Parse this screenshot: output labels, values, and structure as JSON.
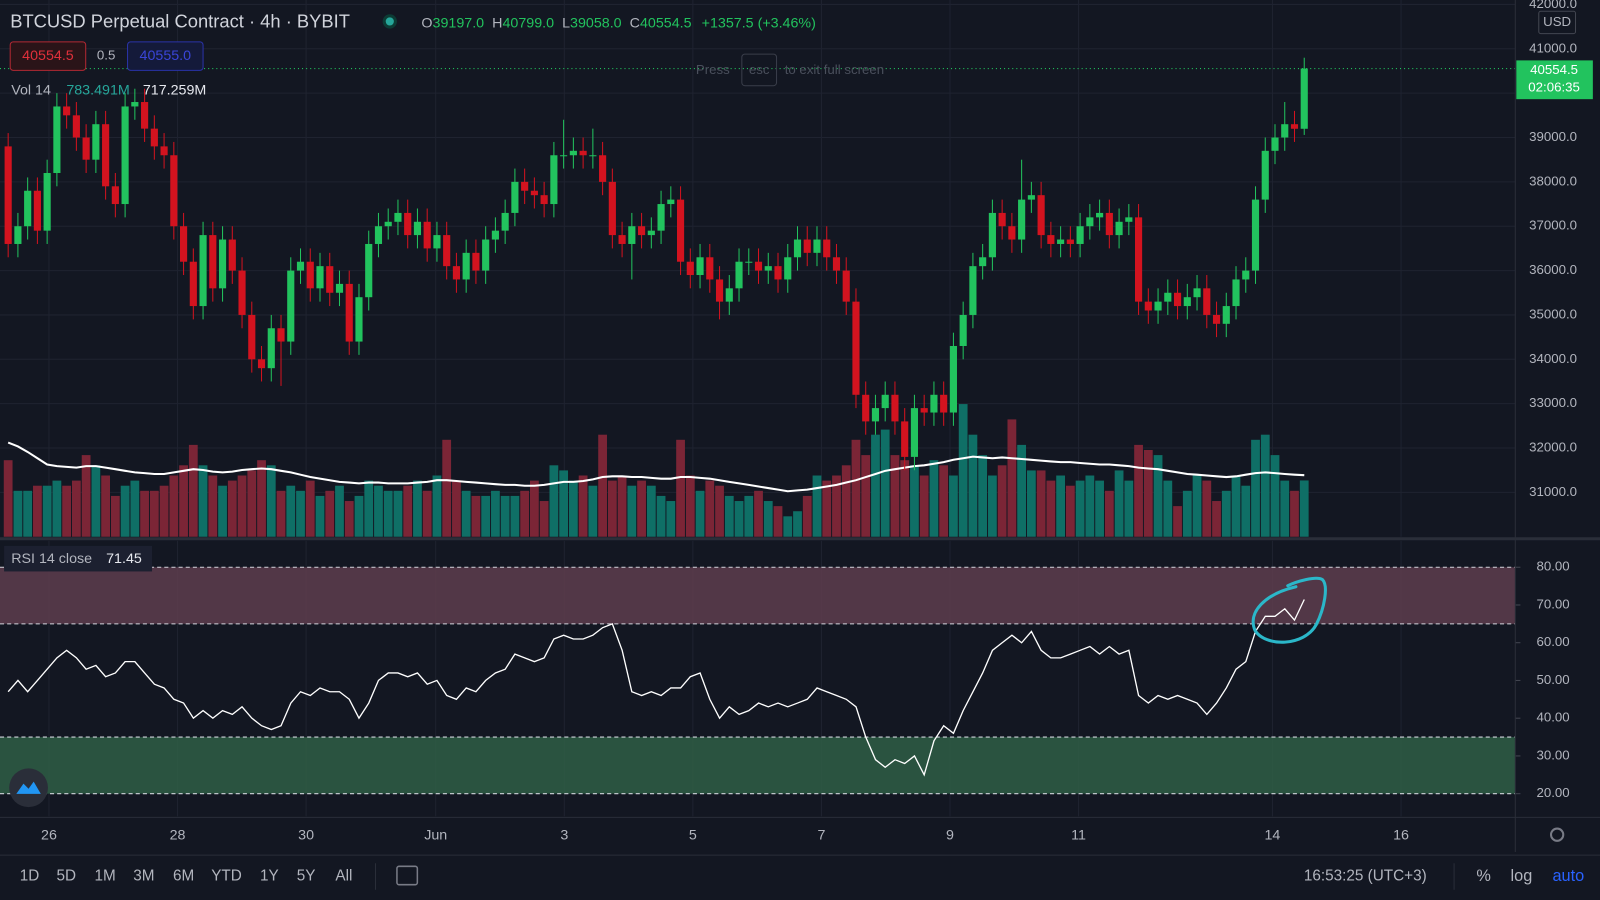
{
  "chart_data": {
    "type": "candlestick",
    "title": "BTCUSD Perpetual Contract · 4h · BYBIT",
    "ohlc_legend": [
      {
        "key": "O",
        "value": "39197.0"
      },
      {
        "key": "H",
        "value": "40799.0"
      },
      {
        "key": "L",
        "value": "39058.0"
      },
      {
        "key": "C",
        "value": "40554.5"
      }
    ],
    "change": "+1357.5 (+3.46%)",
    "sell_price": "40554.5",
    "spread": "0.5",
    "buy_price": "40555.0",
    "overlay_hint": [
      "Press",
      "esc",
      "to exit full screen"
    ],
    "volume_legend": {
      "name": "Vol 14",
      "ma": "783.491M",
      "last": "717.259M"
    },
    "price_tag": {
      "price": "40554.5",
      "countdown": "02:06:35"
    },
    "currency": "USD",
    "up_color": "#22c35e",
    "down_color": "#d3131f",
    "volume_up_color": "#0f6f66",
    "volume_down_color": "#7b2536",
    "grid": true,
    "ylim": [
      30000,
      42100
    ],
    "yticks": [
      {
        "value": 31000,
        "label": "31000.0"
      },
      {
        "value": 32000,
        "label": "32000.0"
      },
      {
        "value": 33000,
        "label": "33000.0"
      },
      {
        "value": 34000,
        "label": "34000.0"
      },
      {
        "value": 35000,
        "label": "35000.0"
      },
      {
        "value": 36000,
        "label": "36000.0"
      },
      {
        "value": 37000,
        "label": "37000.0"
      },
      {
        "value": 38000,
        "label": "38000.0"
      },
      {
        "value": 39000,
        "label": "39000.0"
      },
      {
        "value": 40000,
        "label": "40000.0"
      },
      {
        "value": 41000,
        "label": "41000.0"
      },
      {
        "value": 42000,
        "label": "42000.0"
      }
    ],
    "xtick_labels": [
      "26",
      "28",
      "30",
      "Jun",
      "3",
      "5",
      "7",
      "9",
      "11",
      "14",
      "16"
    ],
    "open": [
      38800,
      36600,
      37000,
      37800,
      36900,
      38200,
      39700,
      39500,
      39000,
      38500,
      39300,
      37900,
      37500,
      39700,
      39800,
      39200,
      38800,
      38600,
      37000,
      36200,
      35200,
      36800,
      35600,
      36700,
      36000,
      35000,
      34000,
      33800,
      34700,
      34400,
      36000,
      36200,
      35600,
      36100,
      35500,
      35700,
      34400,
      35400,
      36600,
      37000,
      37100,
      37300,
      36800,
      37100,
      36500,
      36800,
      36100,
      35800,
      36400,
      36000,
      36700,
      36900,
      37300,
      38000,
      37800,
      37700,
      37500,
      38600,
      38600,
      38700,
      38600,
      38600,
      38000,
      36800,
      36600,
      37000,
      36800,
      36900,
      37500,
      37600,
      36200,
      35900,
      36300,
      35800,
      35300,
      35600,
      36200,
      36200,
      36000,
      36100,
      35800,
      36300,
      36700,
      36400,
      36700,
      36300,
      36000,
      35300,
      33200,
      32600,
      32900,
      33200,
      32600,
      31800,
      32900,
      32800,
      33200,
      32800,
      34300,
      35000,
      36100,
      36300,
      37300,
      37000,
      36700,
      37600,
      37700,
      36800,
      36600,
      36700,
      36600,
      37000,
      37200,
      37300,
      36800,
      37100,
      37200,
      35300,
      35100,
      35300,
      35500,
      35200,
      35400,
      35600,
      35000,
      34800,
      35200,
      35800,
      36000,
      37600,
      38700,
      39000,
      39300,
      39197
    ],
    "high": [
      39100,
      37300,
      38100,
      38100,
      38500,
      40000,
      40000,
      39800,
      39300,
      39600,
      39600,
      38200,
      40000,
      40100,
      40100,
      39500,
      39100,
      38900,
      37300,
      36500,
      37100,
      37100,
      37000,
      37000,
      36300,
      35300,
      34300,
      35000,
      35000,
      36300,
      36500,
      36500,
      36400,
      36400,
      36000,
      36000,
      35700,
      36900,
      37300,
      37400,
      37600,
      37600,
      37400,
      37400,
      37100,
      37100,
      36400,
      36700,
      36700,
      37000,
      37200,
      37600,
      38300,
      38300,
      38100,
      38000,
      38900,
      39400,
      39000,
      39000,
      39200,
      38900,
      38300,
      37100,
      37300,
      37300,
      37200,
      37800,
      37900,
      37900,
      36500,
      36600,
      36600,
      36100,
      35900,
      36500,
      36500,
      36500,
      36400,
      36400,
      36600,
      37000,
      37000,
      37000,
      37000,
      36600,
      36300,
      35600,
      33500,
      33200,
      33500,
      33500,
      32900,
      33200,
      33200,
      33500,
      33500,
      34600,
      35300,
      36400,
      36600,
      37600,
      37600,
      37300,
      38500,
      38000,
      38000,
      37100,
      37000,
      37000,
      37300,
      37500,
      37600,
      37600,
      37400,
      37500,
      37500,
      35600,
      35600,
      35800,
      35800,
      35700,
      35900,
      35900,
      35300,
      35500,
      36100,
      36300,
      37900,
      39000,
      39300,
      39800,
      39600,
      40799
    ],
    "low": [
      36300,
      36300,
      36700,
      36600,
      36600,
      37900,
      39200,
      38700,
      38200,
      38200,
      37600,
      37200,
      37200,
      39400,
      38900,
      38500,
      38300,
      36700,
      35900,
      34900,
      34900,
      35300,
      35300,
      35700,
      34700,
      33700,
      33500,
      33500,
      33400,
      34100,
      35700,
      35300,
      35300,
      35200,
      35200,
      34100,
      34100,
      35100,
      36300,
      36700,
      36800,
      36500,
      36500,
      36200,
      36200,
      35800,
      35500,
      35500,
      35700,
      35700,
      36400,
      36600,
      37000,
      37500,
      37400,
      37200,
      37200,
      38300,
      38300,
      38300,
      38300,
      37700,
      36500,
      36300,
      35800,
      36500,
      36500,
      36600,
      37200,
      35900,
      35600,
      35600,
      35500,
      34900,
      35000,
      35300,
      35900,
      35700,
      35700,
      35500,
      35500,
      36000,
      36100,
      36100,
      36000,
      35700,
      35000,
      32900,
      32300,
      32300,
      32600,
      32300,
      31500,
      31500,
      32500,
      32500,
      32500,
      32500,
      34000,
      34700,
      35800,
      36000,
      36700,
      36400,
      36400,
      37300,
      36500,
      36300,
      36300,
      36300,
      36300,
      36700,
      36900,
      36500,
      36500,
      36800,
      35000,
      34800,
      34800,
      35000,
      34900,
      34900,
      35100,
      34700,
      34500,
      34500,
      34900,
      35500,
      35700,
      37300,
      38400,
      38700,
      38900,
      39058
    ],
    "close": [
      36600,
      37000,
      37800,
      36900,
      38200,
      39700,
      39500,
      39000,
      38500,
      39300,
      37900,
      37500,
      39700,
      39800,
      39200,
      38800,
      38600,
      37000,
      36200,
      35200,
      36800,
      35600,
      36700,
      36000,
      35000,
      34000,
      33800,
      34700,
      34400,
      36000,
      36200,
      35600,
      36100,
      35500,
      35700,
      34400,
      35400,
      36600,
      37000,
      37100,
      37300,
      36800,
      37100,
      36500,
      36800,
      36100,
      35800,
      36400,
      36000,
      36700,
      36900,
      37300,
      38000,
      37800,
      37700,
      37500,
      38600,
      38600,
      38700,
      38600,
      38600,
      38000,
      36800,
      36600,
      37000,
      36800,
      36900,
      37500,
      37600,
      36200,
      35900,
      36300,
      35800,
      35300,
      35600,
      36200,
      36200,
      36000,
      36100,
      35800,
      36300,
      36700,
      36400,
      36700,
      36300,
      36000,
      35300,
      33200,
      32600,
      32900,
      33200,
      32600,
      31800,
      32900,
      32800,
      33200,
      32800,
      34300,
      35000,
      36100,
      36300,
      37300,
      37000,
      36700,
      37600,
      37700,
      36800,
      36600,
      36700,
      36600,
      37000,
      37200,
      37300,
      36800,
      37100,
      37200,
      35300,
      35100,
      35300,
      35500,
      35200,
      35400,
      35600,
      35000,
      34800,
      35200,
      35800,
      36000,
      37600,
      38700,
      39000,
      39300,
      39197,
      40554.5
    ],
    "volume": [
      975,
      585,
      585,
      650,
      650,
      715,
      650,
      715,
      1040,
      910,
      780,
      520,
      650,
      715,
      585,
      585,
      650,
      780,
      910,
      1170,
      910,
      780,
      650,
      715,
      780,
      845,
      975,
      910,
      585,
      650,
      585,
      715,
      520,
      585,
      650,
      455,
      520,
      715,
      650,
      585,
      585,
      650,
      715,
      585,
      780,
      1235,
      715,
      585,
      520,
      520,
      585,
      520,
      520,
      585,
      715,
      455,
      910,
      845,
      715,
      780,
      650,
      1300,
      715,
      780,
      650,
      715,
      650,
      520,
      455,
      1235,
      780,
      585,
      715,
      650,
      520,
      455,
      520,
      585,
      455,
      390,
      260,
      325,
      520,
      780,
      715,
      780,
      910,
      1235,
      1040,
      1300,
      1365,
      1040,
      975,
      910,
      780,
      975,
      910,
      780,
      1690,
      1300,
      1040,
      780,
      910,
      1495,
      1170,
      845,
      845,
      715,
      780,
      650,
      715,
      780,
      715,
      585,
      845,
      715,
      1170,
      1105,
      1040,
      715,
      390,
      585,
      780,
      715,
      455,
      585,
      780,
      650,
      1235,
      1300,
      1040,
      715,
      585,
      717.259
    ],
    "volume_ma": [
      1200,
      1150,
      1080,
      1000,
      920,
      900,
      890,
      880,
      900,
      900,
      880,
      860,
      840,
      820,
      810,
      800,
      800,
      820,
      840,
      860,
      850,
      830,
      820,
      830,
      850,
      860,
      870,
      860,
      840,
      820,
      790,
      760,
      740,
      720,
      700,
      690,
      680,
      690,
      690,
      680,
      680,
      680,
      690,
      700,
      720,
      720,
      710,
      700,
      690,
      680,
      670,
      660,
      660,
      650,
      650,
      660,
      680,
      700,
      700,
      710,
      730,
      760,
      770,
      770,
      760,
      760,
      750,
      740,
      740,
      760,
      760,
      750,
      740,
      720,
      700,
      680,
      660,
      640,
      620,
      600,
      580,
      590,
      600,
      620,
      640,
      660,
      690,
      720,
      760,
      800,
      840,
      860,
      880,
      900,
      910,
      930,
      950,
      980,
      1000,
      1020,
      1010,
      1000,
      1010,
      1000,
      990,
      980,
      970,
      960,
      950,
      950,
      940,
      930,
      920,
      920,
      910,
      900,
      880,
      870,
      860,
      840,
      820,
      800,
      790,
      780,
      770,
      760,
      770,
      790,
      810,
      820,
      810,
      800,
      790,
      783.491
    ],
    "rsi": {
      "name": "RSI 14 close",
      "value_label": "71.45",
      "line_color": "#ffffff",
      "ylim": [
        14,
        87
      ],
      "yticks": [
        {
          "value": 20,
          "label": "20.00"
        },
        {
          "value": 30,
          "label": "30.00"
        },
        {
          "value": 40,
          "label": "40.00"
        },
        {
          "value": 50,
          "label": "50.00"
        },
        {
          "value": 60,
          "label": "60.00"
        },
        {
          "value": 70,
          "label": "70.00"
        },
        {
          "value": 80,
          "label": "80.00"
        }
      ],
      "overbought": [
        65,
        80
      ],
      "oversold": [
        20,
        35
      ],
      "overbought_color": "#5e3d4d",
      "oversold_color": "#2f5e45",
      "values": [
        47,
        50,
        47,
        50,
        53,
        56,
        58,
        56,
        53,
        54,
        51,
        52,
        55,
        55,
        52,
        49,
        48,
        45,
        44,
        40,
        42,
        40,
        42,
        41,
        43,
        40,
        38,
        37,
        38,
        44,
        47,
        46,
        48,
        47,
        47,
        45,
        40,
        44,
        50,
        52,
        52,
        51,
        52,
        49,
        50,
        46,
        45,
        48,
        47,
        50,
        52,
        53,
        57,
        56,
        55,
        56,
        61,
        62,
        61,
        61,
        62,
        64,
        65,
        58,
        47,
        46,
        47,
        46,
        48,
        48,
        51,
        52,
        45,
        40,
        43,
        41,
        42,
        44,
        43,
        44,
        43,
        44,
        45,
        48,
        47,
        46,
        45,
        43,
        35,
        29,
        27,
        29,
        28,
        30,
        25,
        34,
        38,
        36,
        42,
        47,
        52,
        58,
        60,
        62,
        60,
        63,
        58,
        56,
        56,
        57,
        58,
        59,
        57,
        59,
        57,
        58,
        46,
        44,
        46,
        45,
        46,
        45,
        44,
        41,
        44,
        48,
        53,
        55,
        63,
        67,
        67,
        69,
        66,
        71.45
      ]
    },
    "timeframes": [
      "1D",
      "5D",
      "1M",
      "3M",
      "6M",
      "YTD",
      "1Y",
      "5Y",
      "All"
    ],
    "clock": "16:53:25 (UTC+3)",
    "scale_options": [
      "%",
      "log",
      "auto"
    ]
  }
}
